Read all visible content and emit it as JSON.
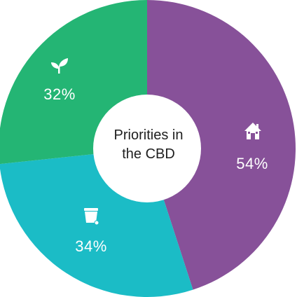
{
  "chart_data": {
    "type": "pie",
    "title": "Priorities in the CBD",
    "title_lines": [
      "Priorities in",
      "the CBD"
    ],
    "slices": [
      {
        "label": "54%",
        "value": 54,
        "color": "#875199",
        "icon": "house-icon"
      },
      {
        "label": "34%",
        "value": 34,
        "color": "#1bbcc6",
        "icon": "trash-bin-icon"
      },
      {
        "label": "32%",
        "value": 32,
        "color": "#24b574",
        "icon": "leaf-sprout-icon"
      }
    ],
    "hole": true,
    "legend": "none"
  }
}
